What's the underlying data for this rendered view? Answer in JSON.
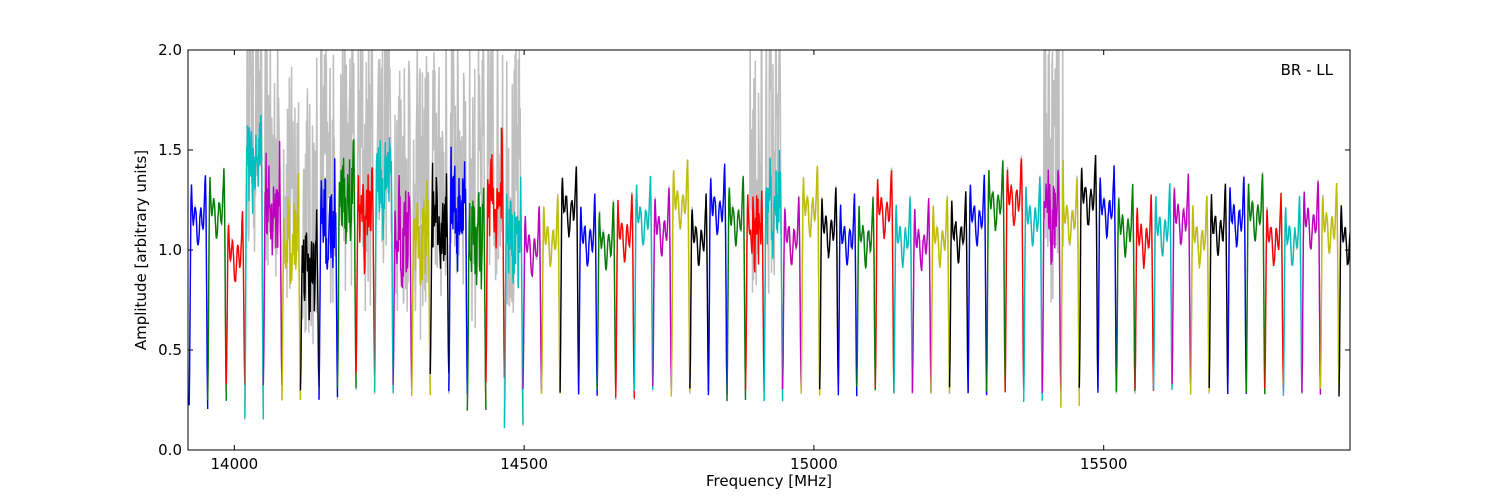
{
  "chart_data": {
    "type": "line",
    "title": "",
    "xlabel": "Frequency [MHz]",
    "ylabel": "Amplitude [arbitrary units]",
    "xlim": [
      13920,
      15925
    ],
    "ylim": [
      0.0,
      2.0
    ],
    "x_ticks": [
      14000,
      14500,
      15000,
      15500
    ],
    "x_tick_labels": [
      "14000",
      "14500",
      "15000",
      "15500"
    ],
    "y_ticks": [
      0.0,
      0.5,
      1.0,
      1.5,
      2.0
    ],
    "y_tick_labels": [
      "0.0",
      "0.5",
      "1.0",
      "1.5",
      "2.0"
    ],
    "grid": false,
    "annotation": "BR - LL",
    "background_series_color": "#bfbfbf",
    "channel_colors": [
      "#0000ff",
      "#007f00",
      "#ff0000",
      "#00bfbf",
      "#bf00bf",
      "#bfbf00",
      "#000000"
    ],
    "band_start_mhz": 13922,
    "band_width_mhz": 32,
    "band_levels": [
      1.3,
      1.34,
      1.12,
      1.6,
      1.35,
      1.2,
      1.05,
      1.25,
      1.4,
      1.3,
      1.5,
      1.25,
      1.2,
      1.25,
      1.36,
      1.2,
      1.4,
      1.2,
      1.15,
      1.2,
      1.35,
      1.2,
      1.18,
      1.22,
      1.3,
      1.25,
      1.38,
      1.2,
      1.35,
      1.3,
      1.25,
      1.35,
      1.2,
      1.35,
      1.25,
      1.2,
      1.2,
      1.34,
      1.2,
      1.18,
      1.2,
      1.22,
      1.3,
      1.38,
      1.4,
      1.3,
      1.3,
      1.3,
      1.4,
      1.35,
      1.25,
      1.2,
      1.25,
      1.3,
      1.2,
      1.25,
      1.3,
      1.32,
      1.2,
      1.2,
      1.28,
      1.26,
      1.2
    ],
    "band_dips": [
      0.22,
      0.25,
      0.33,
      0.15,
      0.32,
      0.25,
      0.3,
      0.25,
      0.3,
      0.38,
      0.28,
      0.32,
      0.28,
      0.38,
      0.28,
      0.2,
      0.35,
      0.12,
      0.3,
      0.28,
      0.3,
      0.28,
      0.3,
      0.25,
      0.3,
      0.32,
      0.28,
      0.3,
      0.28,
      0.25,
      0.3,
      0.25,
      0.3,
      0.28,
      0.3,
      0.28,
      0.3,
      0.3,
      0.28,
      0.3,
      0.28,
      0.3,
      0.28,
      0.3,
      0.3,
      0.25,
      0.28,
      0.22,
      0.3,
      0.3,
      0.28,
      0.3,
      0.3,
      0.32,
      0.28,
      0.3,
      0.28,
      0.28,
      0.3,
      0.28,
      0.28,
      0.3,
      0.28
    ],
    "noisy_region_mhz": [
      [
        14020,
        14500
      ],
      [
        14890,
        14945
      ],
      [
        15395,
        15430
      ]
    ]
  }
}
